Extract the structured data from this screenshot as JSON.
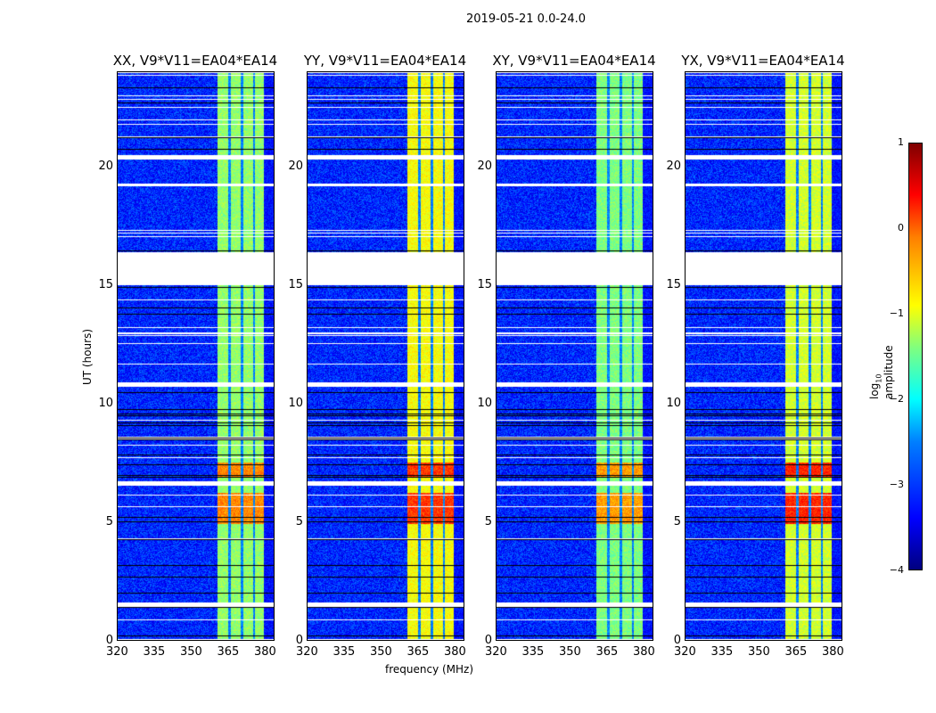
{
  "suptitle": "2019-05-21 0.0-24.0",
  "chart_data": {
    "type": "heatmap",
    "title": "2019-05-21 0.0-24.0",
    "xlabel": "frequency (MHz)",
    "ylabel": "UT (hours)",
    "xlim": [
      320,
      384
    ],
    "ylim": [
      0,
      24
    ],
    "xticks": [
      "320",
      "335",
      "350",
      "365",
      "380"
    ],
    "yticks": [
      "0",
      "5",
      "10",
      "15",
      "20"
    ],
    "xtick_values": [
      320,
      335,
      350,
      365,
      380
    ],
    "ytick_values": [
      0,
      5,
      10,
      15,
      20
    ],
    "panels": [
      {
        "title": "XX, V9*V11=EA04*EA14",
        "band_level": -1.4,
        "peak_level": -0.3
      },
      {
        "title": "YY, V9*V11=EA04*EA14",
        "band_level": -0.9,
        "peak_level": 0.1
      },
      {
        "title": "XY, V9*V11=EA04*EA14",
        "band_level": -1.5,
        "peak_level": -0.4
      },
      {
        "title": "YX, V9*V11=EA04*EA14",
        "band_level": -1.1,
        "peak_level": 0.2
      }
    ],
    "background_level": -3.2,
    "band_MHz": [
      361,
      380
    ],
    "band_gaps_MHz": [
      366,
      371,
      376
    ],
    "flagged_hours": [
      [
        1.4,
        1.6
      ],
      [
        15.0,
        16.4
      ],
      [
        10.7,
        10.9
      ],
      [
        20.3,
        20.5
      ],
      [
        6.5,
        6.7
      ]
    ],
    "peak_hours": [
      [
        4.9,
        6.2
      ],
      [
        6.9,
        7.5
      ]
    ],
    "colorbar": {
      "label": "log10 amplitude",
      "label_main": "log",
      "label_sub": "10",
      "label_rest": " amplitude",
      "range": [
        -4,
        1
      ],
      "ticks": [
        "1",
        "0",
        "−1",
        "−2",
        "−3",
        "−4"
      ],
      "tick_values": [
        1,
        0,
        -1,
        -2,
        -3,
        -4
      ],
      "colormap": "jet"
    }
  }
}
